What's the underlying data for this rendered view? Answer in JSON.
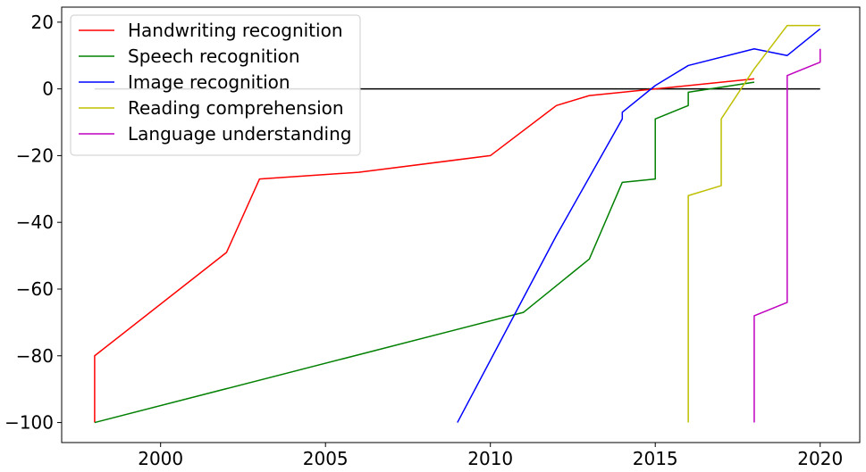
{
  "chart_data": {
    "type": "line",
    "title": "",
    "xlabel": "",
    "ylabel": "",
    "xlim": [
      1997,
      2021.2
    ],
    "ylim": [
      -106,
      24.5
    ],
    "xticks": [
      2000,
      2005,
      2010,
      2015,
      2020
    ],
    "yticks": [
      20,
      0,
      -20,
      -40,
      -60,
      -80,
      -100
    ],
    "grid": false,
    "legend_position": "top-left",
    "reference_line": {
      "y": 0,
      "x_range": [
        1998,
        2020
      ],
      "color": "#000000"
    },
    "series": [
      {
        "name": "Handwriting recognition",
        "color": "#ff0000",
        "x": [
          1998,
          1998,
          2002,
          2003,
          2006,
          2010,
          2012,
          2013,
          2018
        ],
        "y": [
          -100,
          -80,
          -49,
          -27,
          -25,
          -20,
          -5,
          -2,
          3
        ]
      },
      {
        "name": "Speech recognition",
        "color": "#008000",
        "x": [
          1998,
          2011,
          2013,
          2014,
          2015,
          2015,
          2016,
          2016,
          2018
        ],
        "y": [
          -100,
          -67,
          -51,
          -28,
          -27,
          -9,
          -5,
          -1,
          2
        ]
      },
      {
        "name": "Image recognition",
        "color": "#0000ff",
        "x": [
          2009,
          2012,
          2014,
          2014,
          2015,
          2016,
          2018,
          2019,
          2020
        ],
        "y": [
          -100,
          -44,
          -9,
          -7,
          1,
          7,
          12,
          10,
          18
        ]
      },
      {
        "name": "Reading comprehension",
        "color": "#bfbf00",
        "x": [
          2016,
          2016,
          2017,
          2017,
          2018,
          2019,
          2020
        ],
        "y": [
          -100,
          -32,
          -29,
          -9,
          6,
          19,
          19
        ]
      },
      {
        "name": "Language understanding",
        "color": "#bf00bf",
        "x": [
          2018,
          2018,
          2019,
          2019,
          2020,
          2020
        ],
        "y": [
          -100,
          -68,
          -64,
          4,
          8,
          12
        ]
      }
    ]
  }
}
